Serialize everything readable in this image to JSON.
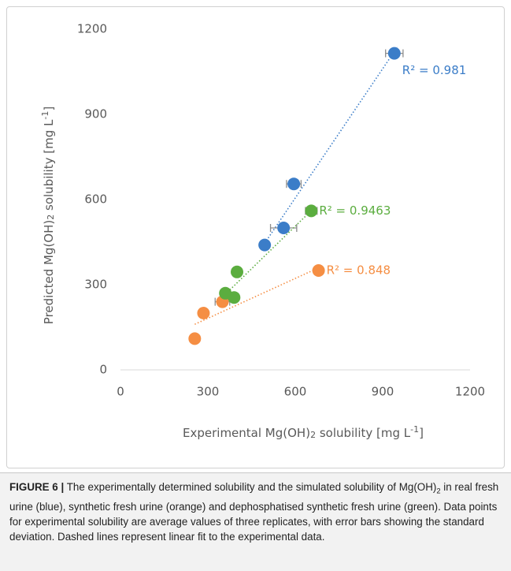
{
  "chart_data": {
    "type": "scatter",
    "xlabel": [
      {
        "text": "Experimental Mg(OH)"
      },
      {
        "sub": "2"
      },
      {
        "text": " solubility [mg L"
      },
      {
        "sup": "-1"
      },
      {
        "text": "]"
      }
    ],
    "ylabel": [
      {
        "text": "Predicted Mg(OH)"
      },
      {
        "sub": "2"
      },
      {
        "text": " solubility [mg L"
      },
      {
        "sup": "-1"
      },
      {
        "text": "]"
      }
    ],
    "xlim": [
      0,
      1200
    ],
    "ylim": [
      0,
      1200
    ],
    "xticks": [
      0,
      300,
      600,
      900,
      1200
    ],
    "yticks": [
      0,
      300,
      600,
      900,
      1200
    ],
    "grid": false,
    "trendline": true,
    "series": [
      {
        "color": "#3b7dc8",
        "x": [
          940,
          595,
          560,
          495
        ],
        "values": [
          1115,
          655,
          500,
          440
        ],
        "xerr": [
          30,
          25,
          45,
          0
        ],
        "r2_label": "R² = 0.981"
      },
      {
        "color": "#f58e43",
        "x": [
          680,
          350,
          285,
          255
        ],
        "values": [
          350,
          240,
          200,
          110
        ],
        "xerr": [
          0,
          25,
          0,
          0
        ],
        "r2_label": "R² = 0.848"
      },
      {
        "color": "#5bad3f",
        "x": [
          655,
          400,
          360,
          390
        ],
        "values": [
          560,
          345,
          270,
          255
        ],
        "xerr": [
          20,
          0,
          0,
          0
        ],
        "r2_label": "R² = 0.9463"
      }
    ]
  },
  "caption": {
    "label": "FIGURE 6 |",
    "parts": [
      {
        "text": " The experimentally determined solubility and the simulated solubility of Mg(OH)"
      },
      {
        "sub": "2"
      },
      {
        "text": " in real fresh urine (blue), synthetic fresh urine (orange) and dephosphatised synthetic fresh urine (green). Data points for experimental solubility are average values of three replicates, with error bars showing the standard deviation. Dashed lines represent linear fit to the experimental data."
      }
    ]
  }
}
